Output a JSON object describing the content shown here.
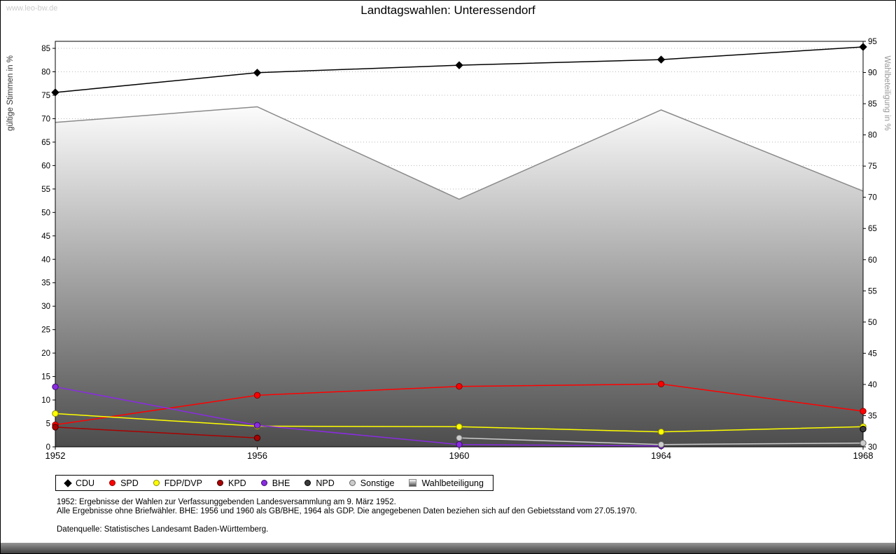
{
  "watermark": "www.leo-bw.de",
  "title": "Landtagswahlen: Unteressendorf",
  "footnotes": [
    "1952: Ergebnisse der Wahlen zur Verfassunggebenden Landesversammlung am 9. März 1952.",
    "Alle Ergebnisse ohne Briefwähler. BHE: 1956 und 1960 als GB/BHE, 1964 als GDP. Die angegebenen Daten beziehen sich auf den Gebietsstand vom 27.05.1970."
  ],
  "source": "Datenquelle: Statistisches Landesamt Baden-Württemberg.",
  "chart_data": {
    "type": "line",
    "title": "Landtagswahlen: Unteressendorf",
    "x_categories": [
      "1952",
      "1956",
      "1960",
      "1964",
      "1968"
    ],
    "left_axis": {
      "label": "gültige Stimmen in %",
      "min": 0,
      "max": 86.5,
      "ticks": [
        0,
        5,
        10,
        15,
        20,
        25,
        30,
        35,
        40,
        45,
        50,
        55,
        60,
        65,
        70,
        75,
        80,
        85
      ]
    },
    "right_axis": {
      "label": "Wahlbeteiligung in %",
      "min": 30,
      "max": 95,
      "ticks": [
        30,
        35,
        40,
        45,
        50,
        55,
        60,
        65,
        70,
        75,
        80,
        85,
        90,
        95
      ]
    },
    "grid": {
      "horizontal": true,
      "style": "dotted",
      "color": "#b8b8b8"
    },
    "area_gradient": [
      "#fcfcfc",
      "#4c4c4c"
    ],
    "legend_position": "bottom",
    "series": [
      {
        "name": "CDU",
        "kind": "line",
        "axis": "left",
        "marker": "diamond",
        "color": "#000000",
        "edge": "#000000",
        "values": [
          75.6,
          79.8,
          81.4,
          82.6,
          85.3
        ]
      },
      {
        "name": "SPD",
        "kind": "line",
        "axis": "left",
        "marker": "circle",
        "color": "#ff0000",
        "edge": "#8b0000",
        "values": [
          4.7,
          11.0,
          12.9,
          13.4,
          7.6
        ]
      },
      {
        "name": "FDP/DVP",
        "kind": "line",
        "axis": "left",
        "marker": "circle",
        "color": "#ffff00",
        "edge": "#8b8b00",
        "values": [
          7.1,
          4.4,
          4.3,
          3.2,
          4.3
        ]
      },
      {
        "name": "KPD",
        "kind": "line",
        "axis": "left",
        "marker": "circle",
        "color": "#aa0000",
        "edge": "#3d0000",
        "values": [
          4.2,
          1.9,
          null,
          null,
          null
        ]
      },
      {
        "name": "BHE",
        "kind": "line",
        "axis": "left",
        "marker": "circle",
        "color": "#8a2be2",
        "edge": "#3c0e68",
        "values": [
          12.8,
          4.6,
          0.5,
          0.2,
          null
        ]
      },
      {
        "name": "NPD",
        "kind": "line",
        "axis": "left",
        "marker": "circle",
        "color": "#3a3a3a",
        "edge": "#000000",
        "values": [
          null,
          null,
          null,
          null,
          3.8
        ]
      },
      {
        "name": "Sonstige",
        "kind": "line",
        "axis": "left",
        "marker": "circle",
        "color": "#cccccc",
        "edge": "#666666",
        "values": [
          null,
          null,
          1.9,
          0.5,
          0.8
        ]
      },
      {
        "name": "Wahlbeteiligung",
        "kind": "area",
        "axis": "right",
        "marker": "square",
        "color": "#8a8a8a",
        "edge": "#8a8a8a",
        "values": [
          82,
          84.5,
          69.7,
          84,
          71
        ]
      }
    ]
  }
}
